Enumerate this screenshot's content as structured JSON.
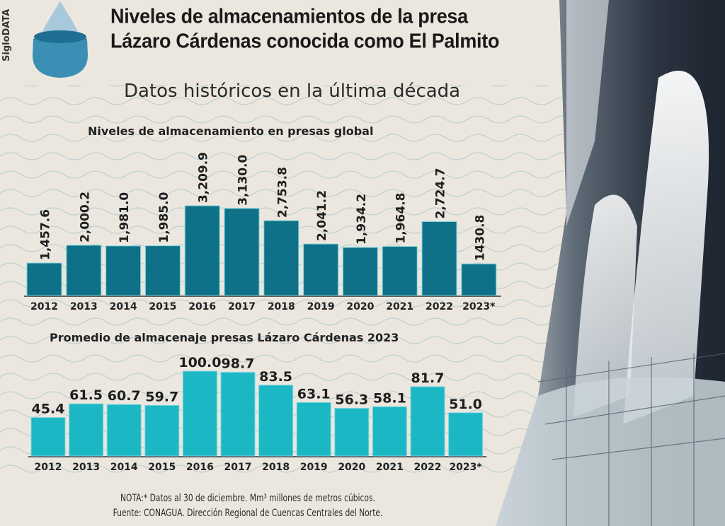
{
  "brand": "SigloDATA",
  "title_lines": [
    "Niveles de almacenamientos de la presa",
    "Lázaro Cárdenas conocida como El Palmito"
  ],
  "subtitle": "Datos históricos en la última década",
  "colors": {
    "background": "#ece7de",
    "chart1_bar": "#0f7188",
    "chart2_bar": "#1bb7c4",
    "wave": "#9fc4cc"
  },
  "chart_data": [
    {
      "type": "bar",
      "title": "Niveles de almacenamiento en presas global",
      "categories": [
        "2012",
        "2013",
        "2014",
        "2015",
        "2016",
        "2017",
        "2018",
        "2019",
        "2020",
        "2021",
        "2022",
        "2023*"
      ],
      "values": [
        1457.6,
        2000.2,
        1981.0,
        1985.0,
        3209.9,
        3130.0,
        2753.8,
        2041.2,
        1934.2,
        1964.8,
        2724.7,
        1430.8
      ],
      "labels": [
        "1,457.6",
        "2,000.2",
        "1,981.0",
        "1,985.0",
        "3,209.9",
        "3,130.0",
        "2,753.8",
        "2,041.2",
        "1,934.2",
        "1,964.8",
        "2,724.7",
        "1430.8"
      ],
      "label_orientation": "vertical",
      "grid": false
    },
    {
      "type": "bar",
      "title": "Promedio de almacenaje presas Lázaro Cárdenas 2023",
      "categories": [
        "2012",
        "2013",
        "2014",
        "2015",
        "2016",
        "2017",
        "2018",
        "2019",
        "2020",
        "2021",
        "2022",
        "2023*"
      ],
      "values": [
        45.4,
        61.5,
        60.7,
        59.7,
        100.0,
        98.7,
        83.5,
        63.1,
        56.3,
        58.1,
        81.7,
        51.0
      ],
      "labels": [
        "45.4",
        "61.5",
        "60.7",
        "59.7",
        "100.0",
        "98.7",
        "83.5",
        "63.1",
        "56.3",
        "58.1",
        "81.7",
        "51.0"
      ],
      "label_orientation": "horizontal",
      "ylim": [
        0,
        100
      ],
      "grid": false
    }
  ],
  "notes": [
    "NOTA:* Datos al 30 de diciembre. Mm³ millones de metros cúbicos.",
    "Fuente: CONAGUA. Dirección Regional de Cuencas Centrales del Norte."
  ]
}
